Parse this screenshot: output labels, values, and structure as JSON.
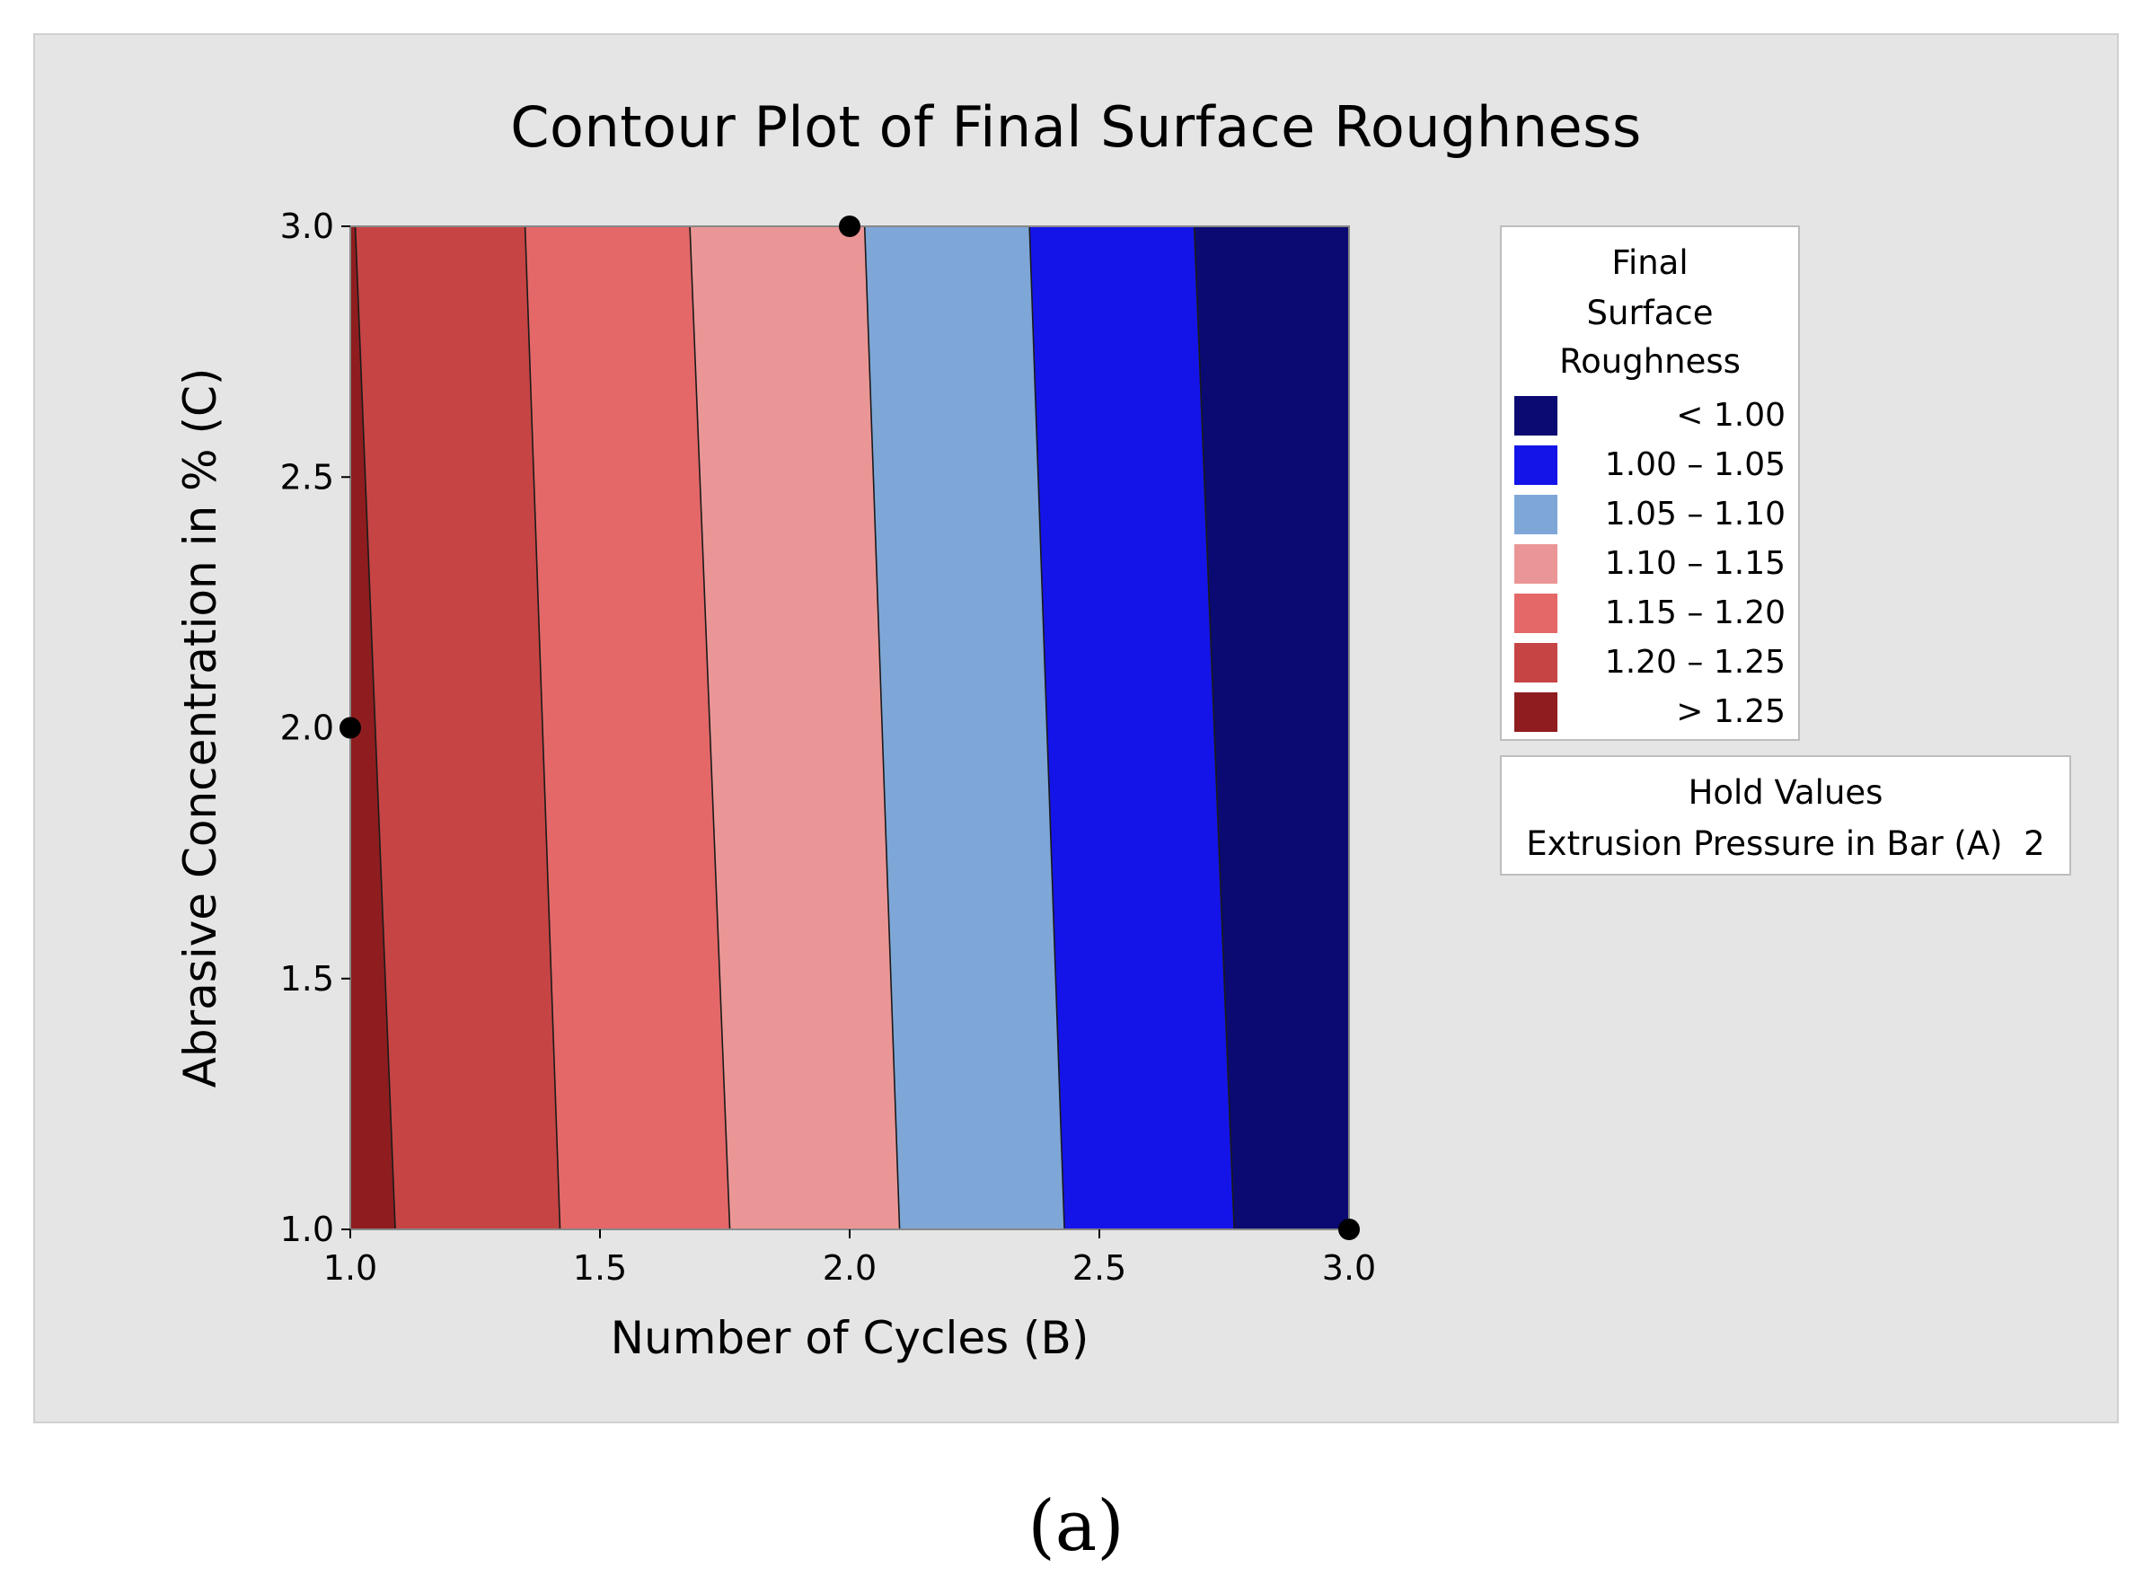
{
  "chart_data": {
    "type": "contour",
    "title": "Contour Plot of Final Surface Roughness",
    "xlabel": "Number of Cycles (B)",
    "ylabel": "Abrasive Concentration in % (C)",
    "xlim": [
      1.0,
      3.0
    ],
    "ylim": [
      1.0,
      3.0
    ],
    "x_ticks": [
      "1.0",
      "1.5",
      "2.0",
      "2.5",
      "3.0"
    ],
    "y_ticks": [
      "1.0",
      "1.5",
      "2.0",
      "2.5",
      "3.0"
    ],
    "legend_title": [
      "Final",
      "Surface",
      "Roughness"
    ],
    "levels": [
      {
        "label": "> 1.25",
        "low": 1.25,
        "high": null,
        "color": "#8f1d1f"
      },
      {
        "label": "1.20 – 1.25",
        "low": 1.2,
        "high": 1.25,
        "color": "#c74444"
      },
      {
        "label": "1.15 – 1.20",
        "low": 1.15,
        "high": 1.2,
        "color": "#e46868"
      },
      {
        "label": "1.10 – 1.15",
        "low": 1.1,
        "high": 1.15,
        "color": "#eb9696"
      },
      {
        "label": "1.05 – 1.10",
        "low": 1.05,
        "high": 1.1,
        "color": "#7ea7d8"
      },
      {
        "label": "1.00 – 1.05",
        "low": 1.0,
        "high": 1.05,
        "color": "#1414e8"
      },
      {
        "label": "< 1.00",
        "low": null,
        "high": 1.0,
        "color": "#0a0a72"
      }
    ],
    "contour_boundaries": [
      {
        "level": 1.25,
        "x_at_y3": 1.01,
        "x_at_y1": 1.09
      },
      {
        "level": 1.2,
        "x_at_y3": 1.35,
        "x_at_y1": 1.42
      },
      {
        "level": 1.15,
        "x_at_y3": 1.68,
        "x_at_y1": 1.76
      },
      {
        "level": 1.1,
        "x_at_y3": 2.03,
        "x_at_y1": 2.1
      },
      {
        "level": 1.05,
        "x_at_y3": 2.36,
        "x_at_y1": 2.43
      },
      {
        "level": 1.0,
        "x_at_y3": 2.69,
        "x_at_y1": 2.77
      }
    ],
    "design_points": [
      {
        "x": 2.0,
        "y": 3.0
      },
      {
        "x": 1.0,
        "y": 2.0
      },
      {
        "x": 3.0,
        "y": 1.0
      }
    ],
    "hold_values": {
      "title": "Hold Values",
      "label": "Extrusion Pressure in Bar (A)",
      "value": "2"
    }
  },
  "legend_rows": [
    {
      "label": "< 1.00",
      "color": "#0a0a72"
    },
    {
      "label": "1.00 – 1.05",
      "color": "#1414e8"
    },
    {
      "label": "1.05 – 1.10",
      "color": "#7ea7d8"
    },
    {
      "label": "1.10 – 1.15",
      "color": "#eb9696"
    },
    {
      "label": "1.15 – 1.20",
      "color": "#e46868"
    },
    {
      "label": "1.20 – 1.25",
      "color": "#c74444"
    },
    {
      "label": "> 1.25",
      "color": "#8f1d1f"
    }
  ],
  "caption": "(a)"
}
